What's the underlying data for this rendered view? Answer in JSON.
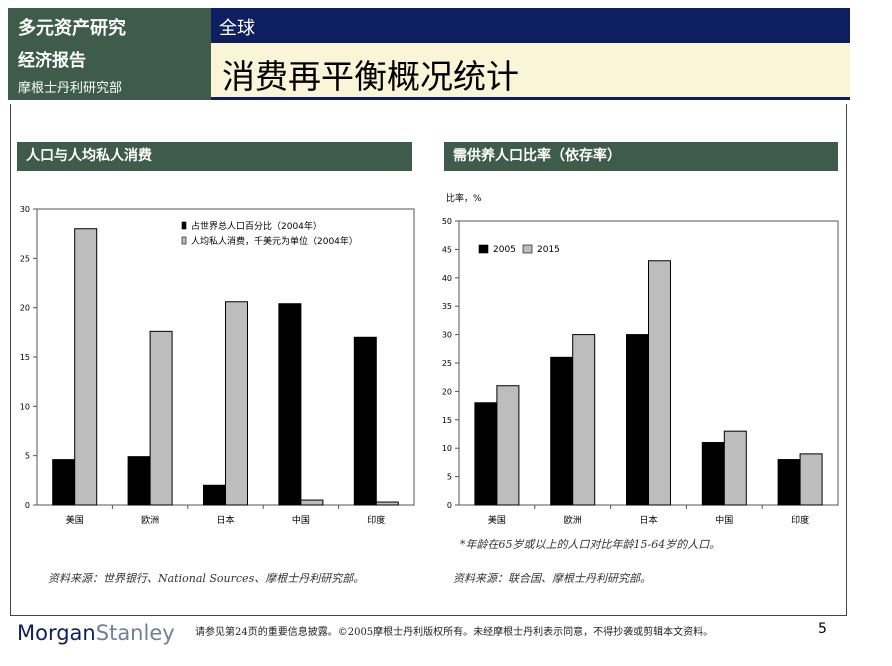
{
  "header": {
    "series": "多元资产研究",
    "region": "全球",
    "report_type": "经济报告",
    "department": "摩根士丹利研究部",
    "title": "消费再平衡概况统计"
  },
  "panels": {
    "left_title": "人口与人均私人消费",
    "right_title": "需供养人口比率（依存率）"
  },
  "chart_data": [
    {
      "type": "bar",
      "categories": [
        "美国",
        "欧洲",
        "日本",
        "中国",
        "印度"
      ],
      "series": [
        {
          "name": "占世界总人口百分比（2004年）",
          "color": "#000000",
          "values": [
            4.6,
            4.9,
            2.0,
            20.4,
            17.0
          ]
        },
        {
          "name": "人均私人消费，千美元为单位（2004年）",
          "color": "#bdbdbd",
          "values": [
            28.0,
            17.6,
            20.6,
            0.5,
            0.3
          ]
        }
      ],
      "ylim": [
        0,
        30
      ],
      "yticks": [
        0,
        5,
        10,
        15,
        20,
        25,
        30
      ],
      "ylabel": "",
      "legend_position": "top-center"
    },
    {
      "type": "bar",
      "categories": [
        "美国",
        "欧洲",
        "日本",
        "中国",
        "印度"
      ],
      "series": [
        {
          "name": "2005",
          "color": "#000000",
          "values": [
            18,
            26,
            30,
            11,
            8
          ]
        },
        {
          "name": "2015",
          "color": "#bdbdbd",
          "values": [
            21,
            30,
            43,
            13,
            9
          ]
        }
      ],
      "ylim": [
        0,
        50
      ],
      "yticks": [
        0,
        5,
        10,
        15,
        20,
        25,
        30,
        35,
        40,
        45,
        50
      ],
      "ylabel": "比率，%",
      "legend_position": "top-left"
    }
  ],
  "notes": {
    "right_note": "*年龄在65岁或以上的人口对比年龄15-64岁的人口。",
    "left_source": "资料来源：世界银行、National Sources、摩根士丹利研究部。",
    "right_source": "资料来源：联合国、摩根士丹利研究部。"
  },
  "footer": {
    "logo_word1": "Morgan",
    "logo_word2": "Stanley",
    "disclaimer": "请参见第24页的重要信息披露。©2005摩根士丹利版权所有。未经摩根士丹利表示同意，不得抄袭或剪辑本文资料。",
    "page_number": "5"
  }
}
